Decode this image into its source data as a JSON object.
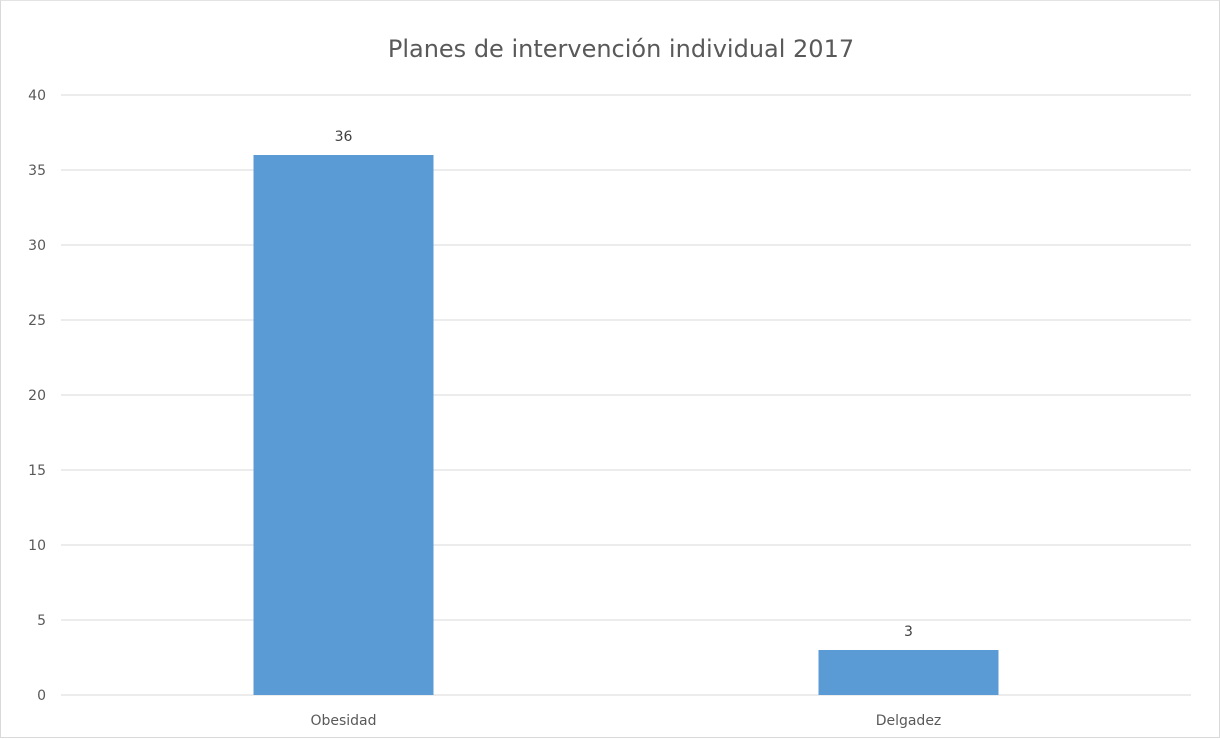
{
  "chart_data": {
    "type": "bar",
    "title": "Planes de intervención individual 2017",
    "categories": [
      "Obesidad",
      "Delgadez"
    ],
    "series": [
      {
        "values": [
          36,
          3
        ],
        "data_labels": [
          "36",
          "3"
        ]
      }
    ],
    "xlabel": "",
    "ylabel": "",
    "ylim": [
      0,
      40
    ],
    "yticks": [
      0,
      5,
      10,
      15,
      20,
      25,
      30,
      35,
      40
    ],
    "grid": true,
    "legend": "none",
    "colors": {
      "bar": "#5B9BD5",
      "grid": "#D9D9D9",
      "text": "#595959"
    }
  }
}
